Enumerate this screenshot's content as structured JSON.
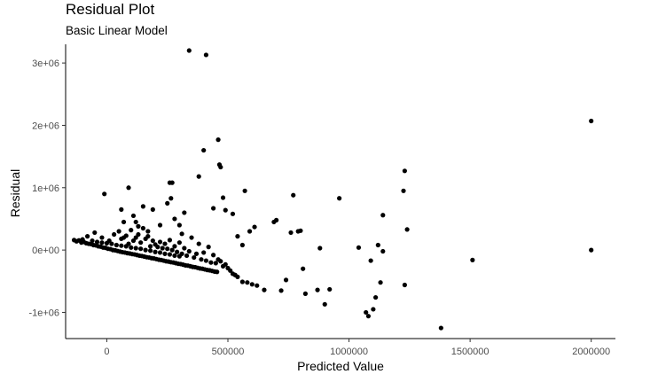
{
  "chart_data": {
    "type": "scatter",
    "title": "Residual Plot",
    "subtitle": "Basic Linear Model",
    "xlabel": "Predicted Value",
    "ylabel": "Residual",
    "xlim": [
      -170000,
      2100000
    ],
    "ylim": [
      -1420000,
      3300000
    ],
    "xticks": [
      0,
      500000,
      1000000,
      1500000,
      2000000
    ],
    "xtick_labels": [
      "0",
      "500000",
      "1000000",
      "1500000",
      "2000000"
    ],
    "yticks": [
      -1000000,
      0,
      1000000,
      2000000,
      3000000
    ],
    "ytick_labels": [
      "-1e+06",
      "0e+00",
      "1e+06",
      "2e+06",
      "3e+06"
    ],
    "grid": false,
    "point_color": "#000000",
    "points": [
      [
        -135000,
        160000
      ],
      [
        -125000,
        140000
      ],
      [
        -115000,
        155000
      ],
      [
        -105000,
        120000
      ],
      [
        -95000,
        130000
      ],
      [
        -85000,
        110000
      ],
      [
        -75000,
        100000
      ],
      [
        -65000,
        95000
      ],
      [
        -55000,
        80000
      ],
      [
        -45000,
        75000
      ],
      [
        -35000,
        60000
      ],
      [
        -25000,
        55000
      ],
      [
        -15000,
        40000
      ],
      [
        -5000,
        35000
      ],
      [
        5000,
        20000
      ],
      [
        15000,
        15000
      ],
      [
        25000,
        0
      ],
      [
        35000,
        -5000
      ],
      [
        45000,
        -15000
      ],
      [
        55000,
        -25000
      ],
      [
        65000,
        -35000
      ],
      [
        75000,
        -40000
      ],
      [
        85000,
        -50000
      ],
      [
        95000,
        -55000
      ],
      [
        105000,
        -65000
      ],
      [
        115000,
        -70000
      ],
      [
        125000,
        -80000
      ],
      [
        135000,
        -90000
      ],
      [
        145000,
        -95000
      ],
      [
        155000,
        -105000
      ],
      [
        165000,
        -115000
      ],
      [
        175000,
        -120000
      ],
      [
        185000,
        -130000
      ],
      [
        195000,
        -135000
      ],
      [
        205000,
        -145000
      ],
      [
        215000,
        -155000
      ],
      [
        225000,
        -160000
      ],
      [
        235000,
        -170000
      ],
      [
        245000,
        -180000
      ],
      [
        255000,
        -185000
      ],
      [
        265000,
        -195000
      ],
      [
        275000,
        -200000
      ],
      [
        285000,
        -210000
      ],
      [
        295000,
        -220000
      ],
      [
        305000,
        -225000
      ],
      [
        315000,
        -235000
      ],
      [
        325000,
        -245000
      ],
      [
        335000,
        -250000
      ],
      [
        345000,
        -260000
      ],
      [
        355000,
        -270000
      ],
      [
        365000,
        -275000
      ],
      [
        375000,
        -285000
      ],
      [
        385000,
        -295000
      ],
      [
        395000,
        -300000
      ],
      [
        405000,
        -310000
      ],
      [
        415000,
        -320000
      ],
      [
        425000,
        -325000
      ],
      [
        435000,
        -335000
      ],
      [
        445000,
        -345000
      ],
      [
        455000,
        -350000
      ],
      [
        -100000,
        170000
      ],
      [
        -60000,
        150000
      ],
      [
        -40000,
        130000
      ],
      [
        -20000,
        120000
      ],
      [
        0,
        110000
      ],
      [
        20000,
        100000
      ],
      [
        40000,
        80000
      ],
      [
        60000,
        70000
      ],
      [
        80000,
        60000
      ],
      [
        100000,
        40000
      ],
      [
        120000,
        30000
      ],
      [
        140000,
        20000
      ],
      [
        160000,
        0
      ],
      [
        180000,
        -10000
      ],
      [
        200000,
        -30000
      ],
      [
        220000,
        -40000
      ],
      [
        240000,
        -60000
      ],
      [
        260000,
        -70000
      ],
      [
        280000,
        -90000
      ],
      [
        300000,
        -100000
      ],
      [
        -80000,
        220000
      ],
      [
        -50000,
        280000
      ],
      [
        -20000,
        200000
      ],
      [
        10000,
        150000
      ],
      [
        30000,
        250000
      ],
      [
        50000,
        300000
      ],
      [
        60000,
        180000
      ],
      [
        70000,
        200000
      ],
      [
        80000,
        230000
      ],
      [
        90000,
        100000
      ],
      [
        100000,
        320000
      ],
      [
        110000,
        150000
      ],
      [
        120000,
        200000
      ],
      [
        130000,
        250000
      ],
      [
        140000,
        120000
      ],
      [
        150000,
        350000
      ],
      [
        160000,
        180000
      ],
      [
        170000,
        220000
      ],
      [
        180000,
        60000
      ],
      [
        190000,
        150000
      ],
      [
        200000,
        90000
      ],
      [
        210000,
        50000
      ],
      [
        220000,
        130000
      ],
      [
        230000,
        30000
      ],
      [
        240000,
        100000
      ],
      [
        250000,
        20000
      ],
      [
        260000,
        160000
      ],
      [
        270000,
        0
      ],
      [
        280000,
        60000
      ],
      [
        290000,
        -30000
      ],
      [
        300000,
        120000
      ],
      [
        310000,
        -60000
      ],
      [
        320000,
        30000
      ],
      [
        330000,
        -90000
      ],
      [
        340000,
        -20000
      ],
      [
        350000,
        200000
      ],
      [
        360000,
        -120000
      ],
      [
        370000,
        -60000
      ],
      [
        380000,
        100000
      ],
      [
        390000,
        -150000
      ],
      [
        400000,
        -40000
      ],
      [
        410000,
        -170000
      ],
      [
        420000,
        50000
      ],
      [
        430000,
        -200000
      ],
      [
        440000,
        -80000
      ],
      [
        450000,
        -210000
      ],
      [
        460000,
        -150000
      ],
      [
        470000,
        -180000
      ],
      [
        480000,
        -260000
      ],
      [
        490000,
        -230000
      ],
      [
        500000,
        -290000
      ],
      [
        510000,
        -330000
      ],
      [
        520000,
        -380000
      ],
      [
        530000,
        -400000
      ],
      [
        540000,
        -430000
      ],
      [
        -10000,
        900000
      ],
      [
        60000,
        650000
      ],
      [
        70000,
        450000
      ],
      [
        90000,
        1000000
      ],
      [
        110000,
        550000
      ],
      [
        120000,
        450000
      ],
      [
        130000,
        380000
      ],
      [
        150000,
        700000
      ],
      [
        170000,
        300000
      ],
      [
        190000,
        650000
      ],
      [
        220000,
        400000
      ],
      [
        250000,
        750000
      ],
      [
        260000,
        1080000
      ],
      [
        270000,
        1080000
      ],
      [
        265000,
        830000
      ],
      [
        280000,
        500000
      ],
      [
        300000,
        400000
      ],
      [
        310000,
        260000
      ],
      [
        320000,
        600000
      ],
      [
        340000,
        3200000
      ],
      [
        380000,
        1180000
      ],
      [
        400000,
        1600000
      ],
      [
        410000,
        3130000
      ],
      [
        440000,
        670000
      ],
      [
        460000,
        1770000
      ],
      [
        465000,
        1370000
      ],
      [
        470000,
        1330000
      ],
      [
        480000,
        840000
      ],
      [
        490000,
        640000
      ],
      [
        520000,
        580000
      ],
      [
        540000,
        220000
      ],
      [
        560000,
        80000
      ],
      [
        570000,
        950000
      ],
      [
        590000,
        300000
      ],
      [
        610000,
        370000
      ],
      [
        560000,
        -510000
      ],
      [
        580000,
        -520000
      ],
      [
        600000,
        -550000
      ],
      [
        620000,
        -570000
      ],
      [
        650000,
        -640000
      ],
      [
        690000,
        450000
      ],
      [
        700000,
        480000
      ],
      [
        720000,
        -650000
      ],
      [
        740000,
        -480000
      ],
      [
        760000,
        280000
      ],
      [
        770000,
        880000
      ],
      [
        790000,
        300000
      ],
      [
        800000,
        310000
      ],
      [
        820000,
        -700000
      ],
      [
        810000,
        -300000
      ],
      [
        870000,
        -640000
      ],
      [
        880000,
        30000
      ],
      [
        900000,
        -870000
      ],
      [
        920000,
        -630000
      ],
      [
        960000,
        830000
      ],
      [
        1040000,
        40000
      ],
      [
        1070000,
        -1000000
      ],
      [
        1080000,
        -1060000
      ],
      [
        1090000,
        -170000
      ],
      [
        1100000,
        -950000
      ],
      [
        1110000,
        -760000
      ],
      [
        1120000,
        80000
      ],
      [
        1130000,
        -520000
      ],
      [
        1140000,
        560000
      ],
      [
        1140000,
        -20000
      ],
      [
        1230000,
        1270000
      ],
      [
        1225000,
        950000
      ],
      [
        1230000,
        -560000
      ],
      [
        1240000,
        330000
      ],
      [
        1380000,
        -1250000
      ],
      [
        1510000,
        -160000
      ],
      [
        2000000,
        2070000
      ],
      [
        2000000,
        0
      ]
    ]
  }
}
